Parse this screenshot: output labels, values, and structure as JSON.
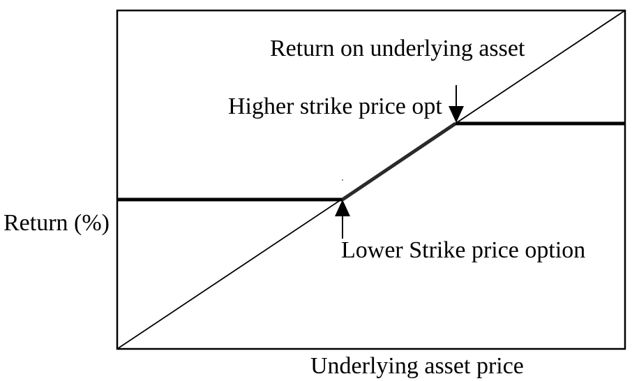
{
  "diagram": {
    "y_axis_label": "Return (%)",
    "x_axis_label": "Underlying asset price",
    "annotations": {
      "underlying_return": "Return on underlying asset",
      "higher_strike": "Higher strike price opt",
      "lower_strike": "Lower Strike price option"
    },
    "colors": {
      "line": "#000000",
      "background": "#ffffff"
    }
  }
}
